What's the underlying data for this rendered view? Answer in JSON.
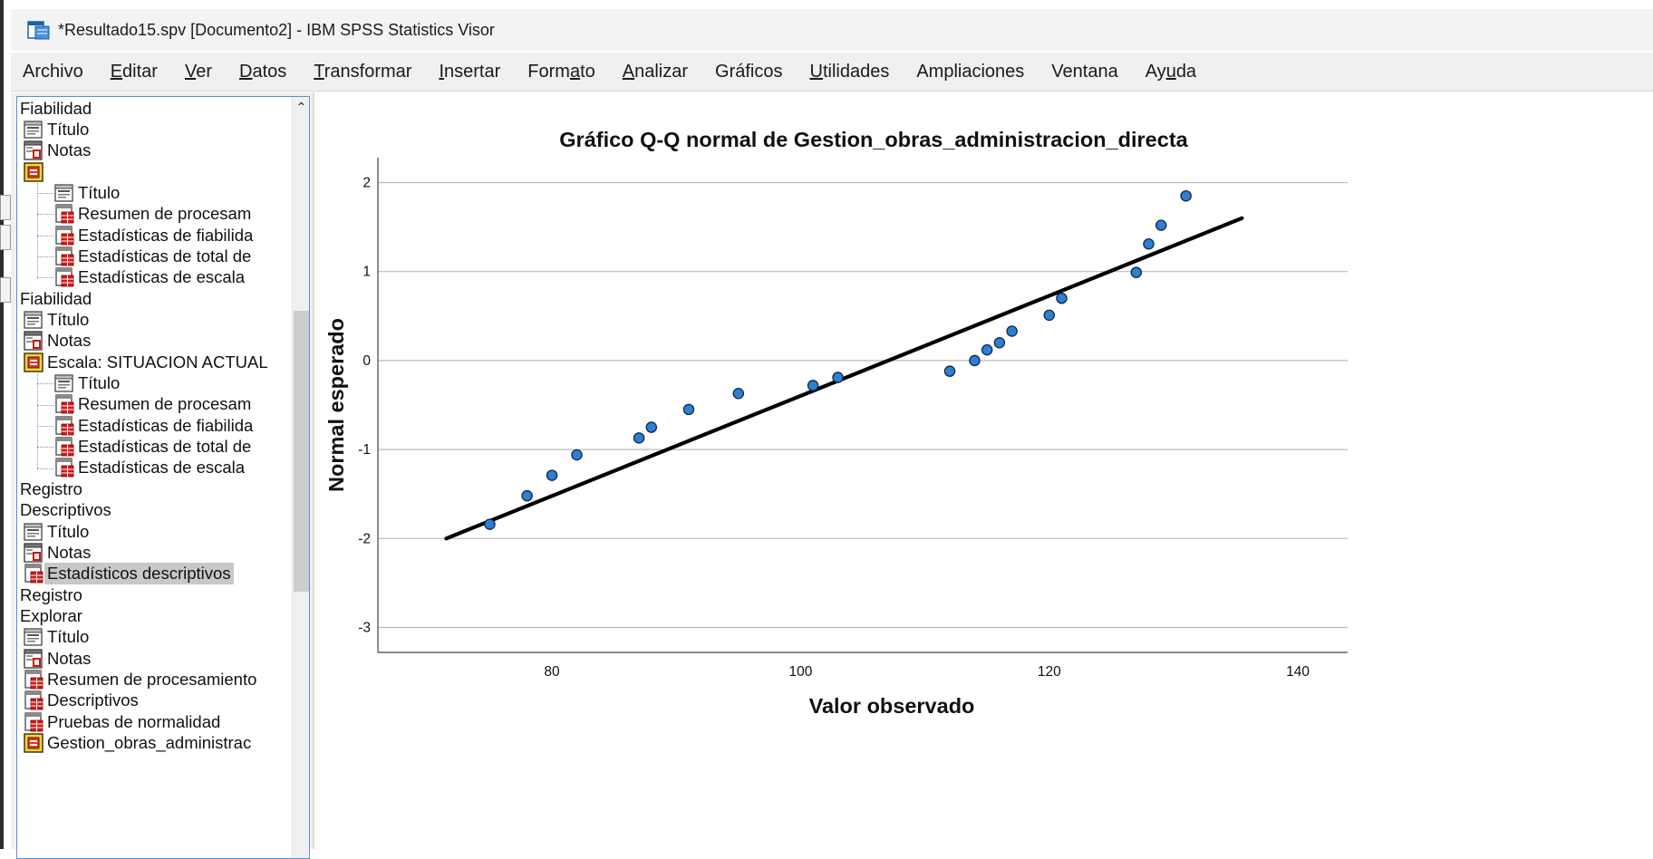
{
  "window": {
    "title": "*Resultado15.spv [Documento2] - IBM SPSS Statistics Visor"
  },
  "menu": [
    {
      "label": "Archivo",
      "mnemonic": ""
    },
    {
      "label": "Editar",
      "mnemonic": "E"
    },
    {
      "label": "Ver",
      "mnemonic": "V"
    },
    {
      "label": "Datos",
      "mnemonic": "D"
    },
    {
      "label": "Transformar",
      "mnemonic": "T"
    },
    {
      "label": "Insertar",
      "mnemonic": "I"
    },
    {
      "label": "Formato",
      "mnemonic": "a"
    },
    {
      "label": "Analizar",
      "mnemonic": "A"
    },
    {
      "label": "Gráficos",
      "mnemonic": ""
    },
    {
      "label": "Utilidades",
      "mnemonic": "U"
    },
    {
      "label": "Ampliaciones",
      "mnemonic": ""
    },
    {
      "label": "Ventana",
      "mnemonic": ""
    },
    {
      "label": "Ayuda",
      "mnemonic": "u"
    }
  ],
  "outline": [
    {
      "label": "Fiabilidad",
      "level": 0,
      "icon": "none"
    },
    {
      "label": "Título",
      "level": 1,
      "icon": "title-icon"
    },
    {
      "label": "Notas",
      "level": 1,
      "icon": "notes-icon"
    },
    {
      "label": "",
      "level": 1,
      "icon": "folder-icon"
    },
    {
      "label": "Título",
      "level": 2,
      "icon": "title-icon"
    },
    {
      "label": "Resumen de procesam",
      "level": 2,
      "icon": "table-icon"
    },
    {
      "label": "Estadísticas de fiabilida",
      "level": 2,
      "icon": "table-icon"
    },
    {
      "label": "Estadísticas de total de",
      "level": 2,
      "icon": "table-icon"
    },
    {
      "label": "Estadísticas de escala",
      "level": 2,
      "icon": "table-icon"
    },
    {
      "label": "Fiabilidad",
      "level": 0,
      "icon": "none"
    },
    {
      "label": "Título",
      "level": 1,
      "icon": "title-icon"
    },
    {
      "label": "Notas",
      "level": 1,
      "icon": "notes-icon"
    },
    {
      "label": "Escala: SITUACION ACTUAL",
      "level": 1,
      "icon": "folder-icon"
    },
    {
      "label": "Título",
      "level": 2,
      "icon": "title-icon"
    },
    {
      "label": "Resumen de procesam",
      "level": 2,
      "icon": "table-icon"
    },
    {
      "label": "Estadísticas de fiabilida",
      "level": 2,
      "icon": "table-icon"
    },
    {
      "label": "Estadísticas de total de",
      "level": 2,
      "icon": "table-icon"
    },
    {
      "label": "Estadísticas de escala",
      "level": 2,
      "icon": "table-icon"
    },
    {
      "label": "Registro",
      "level": 0,
      "icon": "none"
    },
    {
      "label": "Descriptivos",
      "level": 0,
      "icon": "none"
    },
    {
      "label": "Título",
      "level": 1,
      "icon": "title-icon"
    },
    {
      "label": "Notas",
      "level": 1,
      "icon": "notes-icon"
    },
    {
      "label": "Estadísticos descriptivos",
      "level": 1,
      "icon": "table-icon",
      "selected": true
    },
    {
      "label": "Registro",
      "level": 0,
      "icon": "none"
    },
    {
      "label": "Explorar",
      "level": 0,
      "icon": "none"
    },
    {
      "label": "Título",
      "level": 1,
      "icon": "title-icon"
    },
    {
      "label": "Notas",
      "level": 1,
      "icon": "notes-icon"
    },
    {
      "label": "Resumen de procesamiento",
      "level": 1,
      "icon": "table-icon"
    },
    {
      "label": "Descriptivos",
      "level": 1,
      "icon": "table-icon"
    },
    {
      "label": "Pruebas de normalidad",
      "level": 1,
      "icon": "table-icon"
    },
    {
      "label": "Gestion_obras_administrac",
      "level": 1,
      "icon": "folder-icon"
    }
  ],
  "chart_data": {
    "type": "scatter",
    "title": "Gráfico Q-Q normal de Gestion_obras_administracion_directa",
    "xlabel": "Valor observado",
    "ylabel": "Normal esperado",
    "xlim": [
      66,
      144
    ],
    "ylim": [
      -3.28,
      2.28
    ],
    "xticks": [
      80,
      100,
      120,
      140
    ],
    "yticks": [
      2,
      1,
      0,
      -1,
      -2,
      -3
    ],
    "grid": "horizontal",
    "point_color": "#2f7fd0",
    "line_color": "#000000",
    "reference_line": {
      "x": [
        71.5,
        135.5
      ],
      "y": [
        -2.0,
        1.6
      ]
    },
    "x": [
      75,
      78,
      80,
      82,
      87,
      88,
      91,
      95,
      101,
      103,
      112,
      114,
      115,
      116,
      117,
      120,
      121,
      127,
      128,
      129,
      131
    ],
    "y": [
      -1.84,
      -1.52,
      -1.29,
      -1.06,
      -0.87,
      -0.75,
      -0.55,
      -0.37,
      -0.28,
      -0.19,
      -0.12,
      0.0,
      0.12,
      0.2,
      0.33,
      0.51,
      0.7,
      0.99,
      1.31,
      1.52,
      1.85
    ]
  }
}
